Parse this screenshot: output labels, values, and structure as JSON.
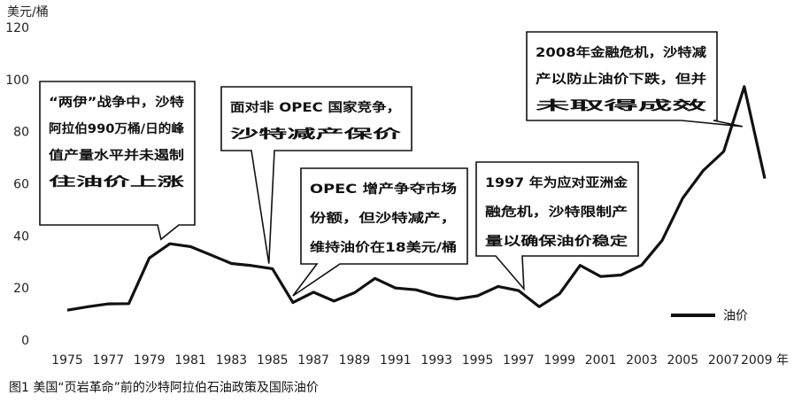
{
  "chart_data": {
    "type": "line",
    "ylabel": "美元/桶",
    "xlabel_suffix": "年",
    "ylim": [
      0,
      120
    ],
    "yticks": [
      0,
      20,
      40,
      60,
      80,
      100,
      120
    ],
    "xlim": [
      1975,
      2009
    ],
    "xticks": [
      1975,
      1977,
      1979,
      1981,
      1983,
      1985,
      1987,
      1989,
      1991,
      1993,
      1995,
      1997,
      1999,
      2001,
      2003,
      2005,
      2007,
      2009
    ],
    "grid": false,
    "legend_position": "bottom-right",
    "caption": "图1   美国“页岩革命”前的沙特阿拉伯石油政策及国际油价",
    "series": [
      {
        "name": "油价",
        "color": "#111111",
        "x": [
          1975,
          1976,
          1977,
          1978,
          1979,
          1980,
          1981,
          1982,
          1983,
          1984,
          1985,
          1986,
          1987,
          1988,
          1989,
          1990,
          1991,
          1992,
          1993,
          1994,
          1995,
          1996,
          1997,
          1998,
          1999,
          2000,
          2001,
          2002,
          2003,
          2004,
          2005,
          2006,
          2007,
          2008,
          2009
        ],
        "y": [
          11.5,
          12.8,
          13.9,
          14,
          31.5,
          37,
          35.9,
          32.7,
          29.4,
          28.6,
          27.4,
          14.4,
          18.4,
          15,
          18.2,
          23.7,
          20,
          19.3,
          17,
          15.8,
          17,
          20.6,
          19,
          12.8,
          17.8,
          28.7,
          24.4,
          25,
          28.8,
          38.3,
          54.5,
          65.1,
          72.4,
          97.3,
          62
        ]
      }
    ],
    "annotations": [
      {
        "lines": [
          "“两伊”战争中，沙特",
          "阿拉伯990万桶/日的峰",
          "值产量水平并未遏制",
          "住油价上涨"
        ],
        "target_x": 1980
      },
      {
        "lines": [
          "面对非 OPEC 国家竞争，",
          "沙特减产保价"
        ],
        "target_x": 1985
      },
      {
        "lines": [
          "OPEC  增产争夺市场",
          "份额，但沙特减产，",
          "维持油价在18美元/桶"
        ],
        "target_x": 1986
      },
      {
        "lines": [
          "1997 年为应对亚洲金",
          "融危机，沙特限制产",
          "量以确保油价稳定"
        ],
        "target_x": 1997
      },
      {
        "lines": [
          "2008年金融危机，沙特减",
          "产以防止油价下跌，但并",
          "未取得成效"
        ],
        "target_x": 2008
      }
    ]
  }
}
